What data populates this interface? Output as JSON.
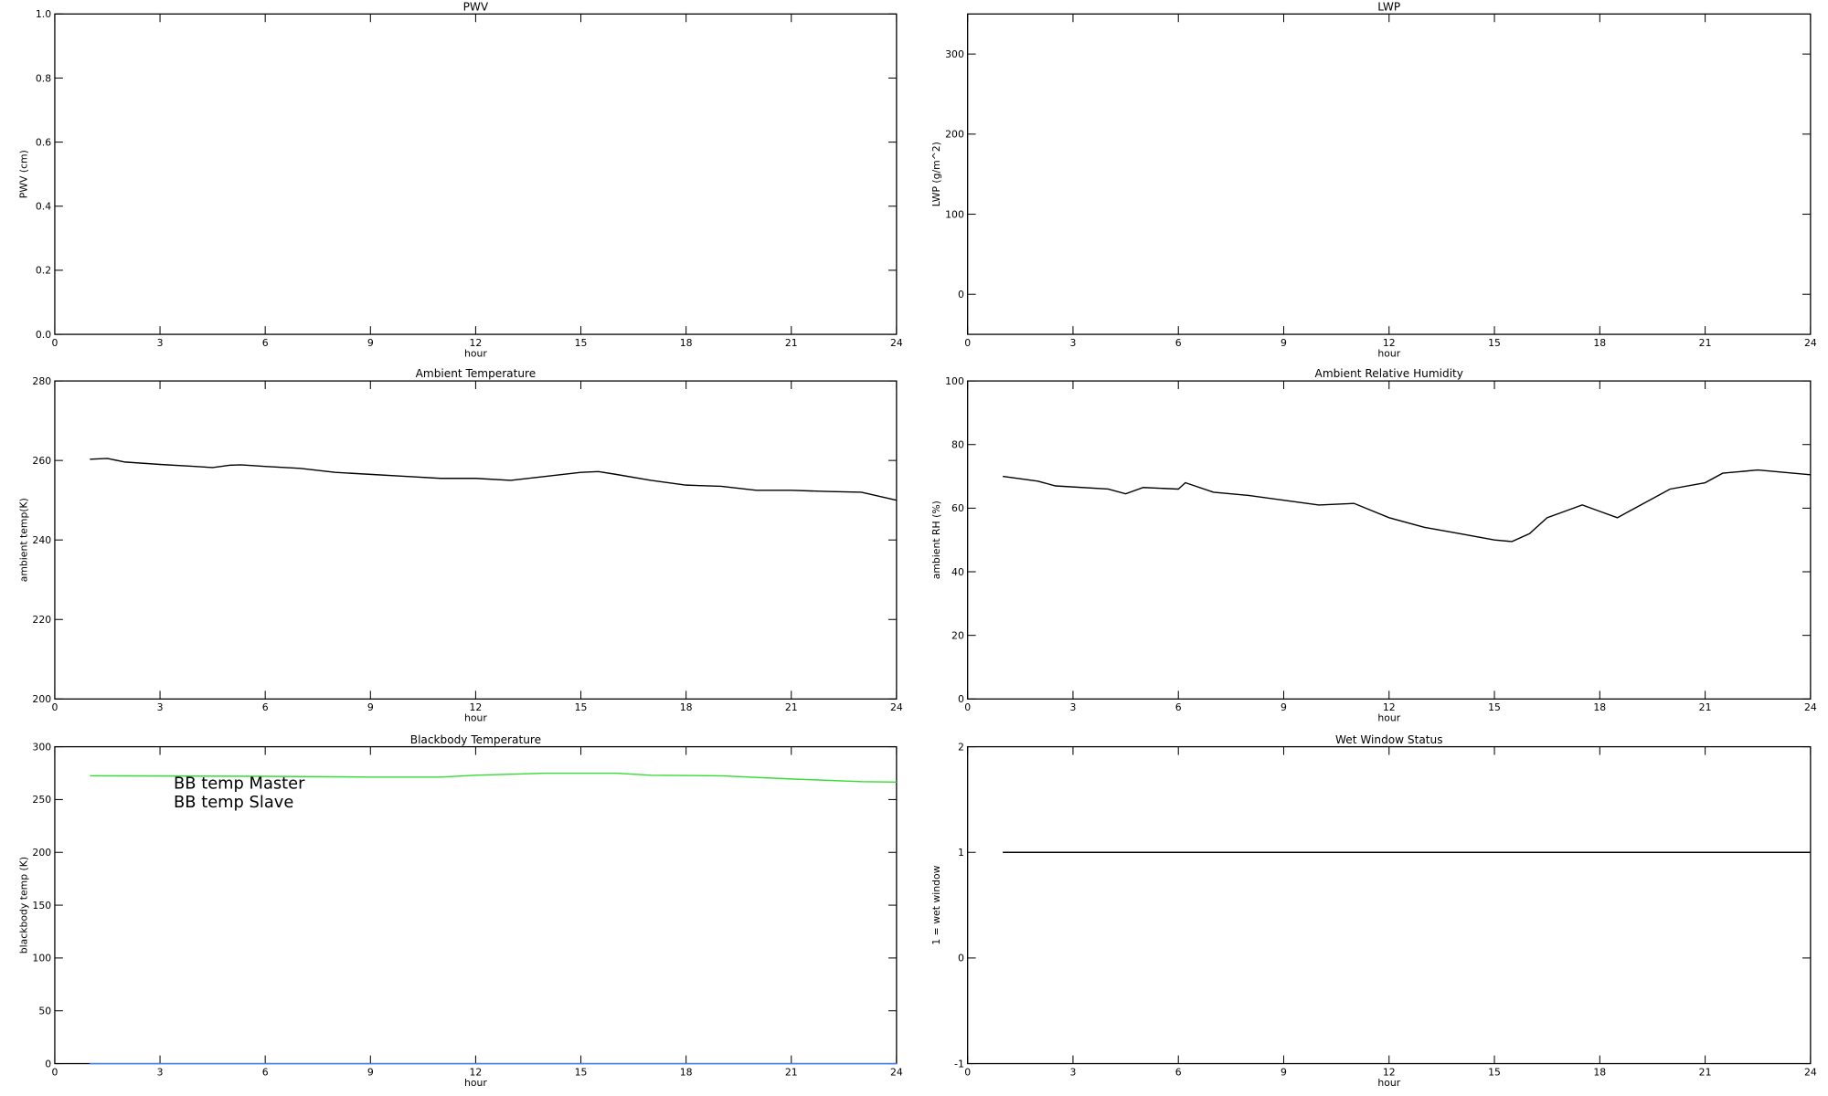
{
  "chart_data": [
    {
      "type": "line",
      "title": "PWV",
      "xlabel": "hour",
      "ylabel": "PWV (cm)",
      "xlim": [
        0,
        24
      ],
      "xticks": [
        0,
        3,
        6,
        9,
        12,
        15,
        18,
        21,
        24
      ],
      "ylim": [
        0,
        1
      ],
      "yticks": [
        {
          "value": 0,
          "label": "0.0"
        },
        0.2,
        0.4,
        0.6,
        0.8,
        {
          "value": 1,
          "label": "1.0"
        }
      ],
      "series": []
    },
    {
      "type": "line",
      "title": "LWP",
      "xlabel": "hour",
      "ylabel": "LWP (g/m^2)",
      "xlim": [
        0,
        24
      ],
      "xticks": [
        0,
        3,
        6,
        9,
        12,
        15,
        18,
        21,
        24
      ],
      "ylim": [
        -50,
        350
      ],
      "yticks": [
        0,
        100,
        200,
        300
      ],
      "series": []
    },
    {
      "type": "line",
      "title": "Ambient Temperature",
      "xlabel": "hour",
      "ylabel": "ambient temp(K)",
      "xlim": [
        0,
        24
      ],
      "xticks": [
        0,
        3,
        6,
        9,
        12,
        15,
        18,
        21,
        24
      ],
      "ylim": [
        200,
        280
      ],
      "yticks": [
        200,
        220,
        240,
        260,
        280
      ],
      "series": [
        {
          "color": "#000000",
          "x": [
            1,
            1.5,
            2,
            3,
            4,
            4.5,
            5,
            5.3,
            6,
            7,
            8,
            9,
            10,
            11,
            12,
            13,
            14,
            15,
            15.5,
            16,
            17,
            18,
            19,
            20,
            21,
            22,
            23,
            24
          ],
          "values": [
            260.3,
            260.5,
            259.6,
            259,
            258.5,
            258.2,
            258.8,
            258.9,
            258.5,
            258,
            257,
            256.5,
            256,
            255.5,
            255.5,
            255,
            256,
            257,
            257.2,
            256.5,
            255,
            253.8,
            253.5,
            252.5,
            252.5,
            252.2,
            252,
            250
          ]
        }
      ]
    },
    {
      "type": "line",
      "title": "Ambient Relative Humidity",
      "xlabel": "hour",
      "ylabel": "ambient RH (%)",
      "xlim": [
        0,
        24
      ],
      "xticks": [
        0,
        3,
        6,
        9,
        12,
        15,
        18,
        21,
        24
      ],
      "ylim": [
        0,
        100
      ],
      "yticks": [
        0,
        20,
        40,
        60,
        80,
        100
      ],
      "series": [
        {
          "color": "#000000",
          "x": [
            1,
            2,
            2.5,
            4,
            4.5,
            5,
            6,
            6.2,
            7,
            8,
            9,
            10,
            11,
            12,
            13,
            14,
            15,
            15.5,
            16,
            16.5,
            17,
            17.5,
            18,
            18.5,
            19,
            20,
            21,
            21.5,
            22.5,
            23.5,
            24
          ],
          "values": [
            70,
            68.5,
            67,
            66,
            64.5,
            66.5,
            66,
            68,
            65,
            64,
            62.5,
            61,
            61.5,
            57,
            54,
            52,
            50,
            49.5,
            52,
            57,
            59,
            61,
            59,
            57,
            60,
            66,
            68,
            71,
            72,
            71,
            70.5
          ]
        }
      ]
    },
    {
      "type": "line",
      "title": "Blackbody Temperature",
      "xlabel": "hour",
      "ylabel": "blackbody temp (K)",
      "xlim": [
        0,
        24
      ],
      "xticks": [
        0,
        3,
        6,
        9,
        12,
        15,
        18,
        21,
        24
      ],
      "ylim": [
        0,
        300
      ],
      "yticks": [
        0,
        50,
        100,
        150,
        200,
        250,
        300
      ],
      "legend": "upper left",
      "series": [
        {
          "name": "BB temp Master",
          "color": "#3d7dff",
          "x": [
            1,
            6,
            12,
            18,
            24
          ],
          "values": [
            0,
            0,
            0,
            0,
            0
          ]
        },
        {
          "name": "BB temp Slave",
          "color": "#33dd33",
          "x": [
            1,
            3,
            6,
            9,
            11,
            12,
            14,
            16,
            17,
            19,
            21,
            23,
            24
          ],
          "values": [
            272.5,
            272.3,
            272,
            271.3,
            271.3,
            273,
            275,
            275,
            273,
            272.5,
            269.5,
            267,
            266.5
          ]
        }
      ]
    },
    {
      "type": "line",
      "title": "Wet Window Status",
      "xlabel": "hour",
      "ylabel": "1 = wet window",
      "xlim": [
        0,
        24
      ],
      "xticks": [
        0,
        3,
        6,
        9,
        12,
        15,
        18,
        21,
        24
      ],
      "ylim": [
        -1,
        2
      ],
      "yticks": [
        -1,
        0,
        1,
        2
      ],
      "series": [
        {
          "color": "#000000",
          "x": [
            1,
            24
          ],
          "values": [
            1,
            1
          ]
        }
      ]
    }
  ]
}
